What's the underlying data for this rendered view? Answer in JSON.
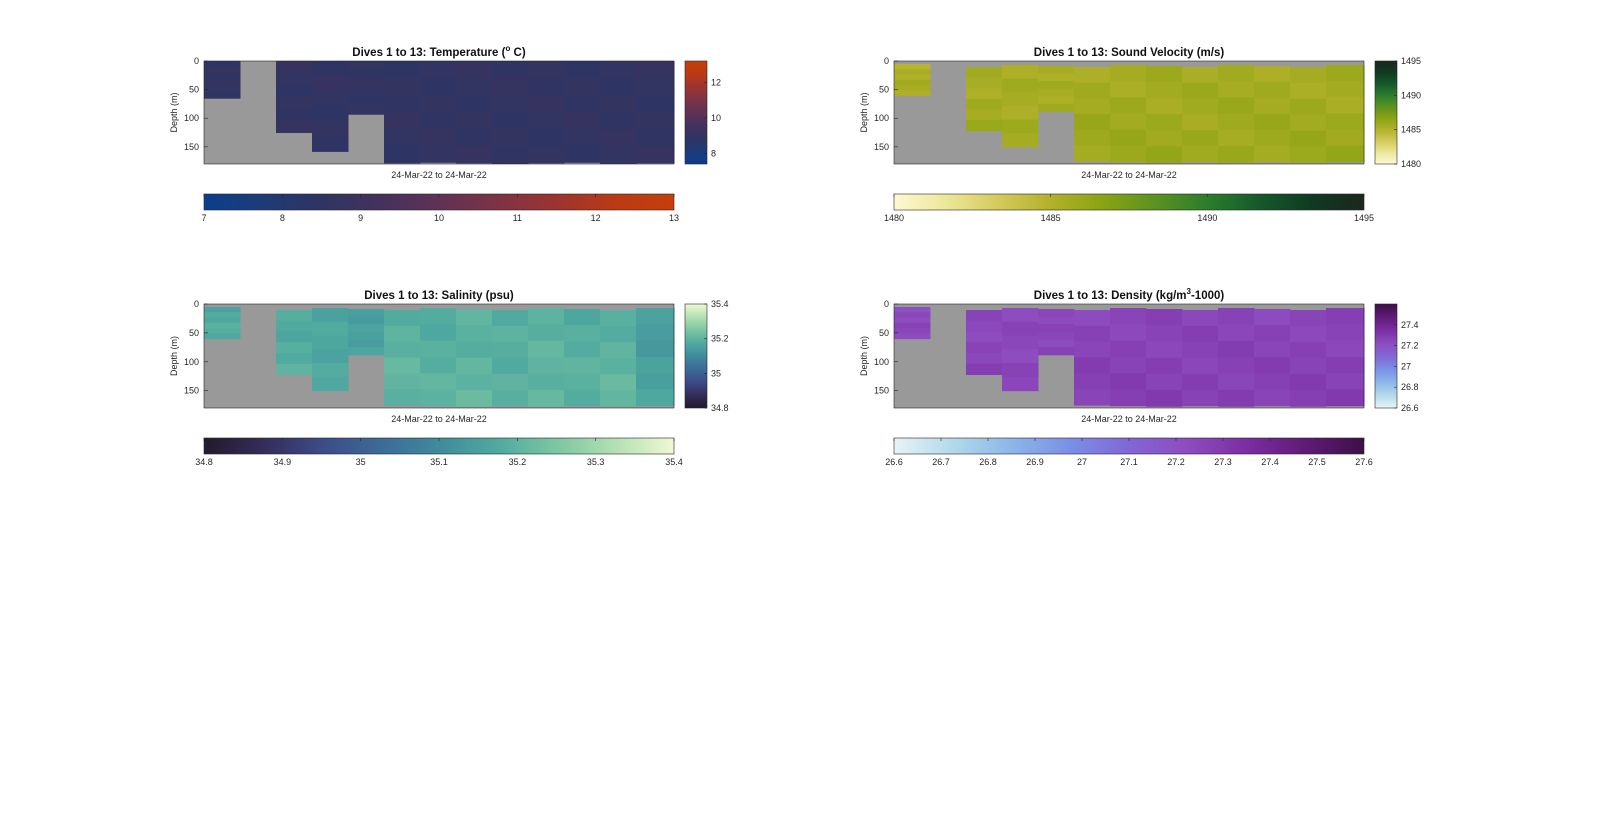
{
  "figure": {
    "background": "#ffffff",
    "no_data_color": "#999999"
  },
  "chart_data": [
    {
      "id": "temperature",
      "type": "heatmap",
      "title": "Dives 1 to 13: Temperature (",
      "title_sup": "o",
      "title_tail": " C)",
      "xlabel": "24-Mar-22 to 24-Mar-22",
      "ylabel": "Depth (m)",
      "y_ticks": [
        "0",
        "50",
        "100",
        "150"
      ],
      "ylim": [
        0,
        180
      ],
      "y_reversed": true,
      "side_colorbar": {
        "range": [
          7.4,
          13.2
        ],
        "ticks": [
          "8",
          "10",
          "12"
        ]
      },
      "bottom_colorbar": {
        "range": [
          7,
          13
        ],
        "ticks": [
          "7",
          "8",
          "9",
          "10",
          "11",
          "12",
          "13"
        ]
      },
      "colormap": [
        "#0a3f8c",
        "#1e3b78",
        "#2f3462",
        "#44325c",
        "#5f3254",
        "#7d3346",
        "#9c3430",
        "#bb3a14",
        "#c43f0a"
      ],
      "profiles": [
        {
          "bottom_depth": 65,
          "value": 8.6
        },
        {
          "bottom_depth": 0,
          "value": null
        },
        {
          "bottom_depth": 125,
          "value": 8.6
        },
        {
          "bottom_depth": 158,
          "value": 8.6
        },
        {
          "bottom_depth": 93,
          "value": 8.6
        },
        {
          "bottom_depth": 178,
          "value": 8.6
        },
        {
          "bottom_depth": 177,
          "value": 8.6
        },
        {
          "bottom_depth": 178,
          "value": 8.6
        },
        {
          "bottom_depth": 179,
          "value": 8.6
        },
        {
          "bottom_depth": 178,
          "value": 8.6
        },
        {
          "bottom_depth": 177,
          "value": 8.6
        },
        {
          "bottom_depth": 179,
          "value": 8.6
        },
        {
          "bottom_depth": 178,
          "value": 8.6
        }
      ]
    },
    {
      "id": "sound-velocity",
      "type": "heatmap",
      "title": "Dives 1 to 13: Sound Velocity (m/s)",
      "title_sup": "",
      "title_tail": "",
      "xlabel": "24-Mar-22 to 24-Mar-22",
      "ylabel": "Depth (m)",
      "y_ticks": [
        "0",
        "50",
        "100",
        "150"
      ],
      "ylim": [
        0,
        180
      ],
      "y_reversed": true,
      "side_colorbar": {
        "range": [
          1480,
          1495
        ],
        "ticks": [
          "1480",
          "1485",
          "1490",
          "1495"
        ]
      },
      "bottom_colorbar": {
        "range": [
          1480,
          1495
        ],
        "ticks": [
          "1480",
          "1485",
          "1490",
          "1495"
        ]
      },
      "colormap": [
        "#fdf9d3",
        "#ece79a",
        "#d4ca5c",
        "#b2b12a",
        "#8ba312",
        "#5c9220",
        "#2c7d2c",
        "#16592a",
        "#0f3a22",
        "#1b271d"
      ],
      "profiles": [
        {
          "bottom_depth": 60,
          "value": 1485.4
        },
        {
          "bottom_depth": 0,
          "value": null
        },
        {
          "bottom_depth": 122,
          "value": 1485.6
        },
        {
          "bottom_depth": 150,
          "value": 1485.6
        },
        {
          "bottom_depth": 88,
          "value": 1485.5
        },
        {
          "bottom_depth": 175,
          "value": 1485.8
        },
        {
          "bottom_depth": 176,
          "value": 1485.8
        },
        {
          "bottom_depth": 177,
          "value": 1485.8
        },
        {
          "bottom_depth": 176,
          "value": 1485.8
        },
        {
          "bottom_depth": 177,
          "value": 1485.8
        },
        {
          "bottom_depth": 176,
          "value": 1485.8
        },
        {
          "bottom_depth": 177,
          "value": 1485.8
        },
        {
          "bottom_depth": 176,
          "value": 1485.8
        }
      ]
    },
    {
      "id": "salinity",
      "type": "heatmap",
      "title": "Dives 1 to 13: Salinity (psu)",
      "title_sup": "",
      "title_tail": "",
      "xlabel": "24-Mar-22 to 24-Mar-22",
      "ylabel": "Depth (m)",
      "y_ticks": [
        "0",
        "50",
        "100",
        "150"
      ],
      "ylim": [
        0,
        180
      ],
      "y_reversed": true,
      "side_colorbar": {
        "range": [
          34.8,
          35.4
        ],
        "ticks": [
          "34.8",
          "35",
          "35.2",
          "35.4"
        ]
      },
      "bottom_colorbar": {
        "range": [
          34.8,
          35.4
        ],
        "ticks": [
          "34.8",
          "34.9",
          "35",
          "35.1",
          "35.2",
          "35.3",
          "35.4"
        ]
      },
      "colormap": [
        "#231a2d",
        "#352c5a",
        "#3c4b87",
        "#3d6a98",
        "#3f8b9c",
        "#50aa9f",
        "#7cc6a2",
        "#b3e0b2",
        "#f0f8d4"
      ],
      "profiles": [
        {
          "bottom_depth": 60,
          "value": 35.18
        },
        {
          "bottom_depth": 0,
          "value": null
        },
        {
          "bottom_depth": 122,
          "value": 35.18
        },
        {
          "bottom_depth": 150,
          "value": 35.17
        },
        {
          "bottom_depth": 88,
          "value": 35.15
        },
        {
          "bottom_depth": 175,
          "value": 35.2
        },
        {
          "bottom_depth": 176,
          "value": 35.19
        },
        {
          "bottom_depth": 177,
          "value": 35.2
        },
        {
          "bottom_depth": 176,
          "value": 35.19
        },
        {
          "bottom_depth": 177,
          "value": 35.2
        },
        {
          "bottom_depth": 176,
          "value": 35.19
        },
        {
          "bottom_depth": 177,
          "value": 35.2
        },
        {
          "bottom_depth": 176,
          "value": 35.15
        }
      ]
    },
    {
      "id": "density",
      "type": "heatmap",
      "title": "Dives 1 to 13: Density (kg/m",
      "title_sup": "3",
      "title_tail": "-1000)",
      "xlabel": "24-Mar-22 to 24-Mar-22",
      "ylabel": "",
      "y_ticks": [
        "0",
        "50",
        "100",
        "150"
      ],
      "ylim": [
        0,
        180
      ],
      "y_reversed": true,
      "side_colorbar": {
        "range": [
          26.6,
          27.6
        ],
        "ticks": [
          "26.6",
          "26.8",
          "27",
          "27.2",
          "27.4"
        ]
      },
      "bottom_colorbar": {
        "range": [
          26.6,
          27.6
        ],
        "ticks": [
          "26.6",
          "26.7",
          "26.8",
          "26.9",
          "27",
          "27.1",
          "27.2",
          "27.3",
          "27.4",
          "27.5",
          "27.6"
        ]
      },
      "colormap": [
        "#e7f3f6",
        "#b3d9ea",
        "#8cb6e8",
        "#7a8fe6",
        "#8366d6",
        "#8d4cbf",
        "#7b2ea2",
        "#5f1b78",
        "#3e0f47"
      ],
      "profiles": [
        {
          "bottom_depth": 60,
          "value": 27.24
        },
        {
          "bottom_depth": 0,
          "value": null
        },
        {
          "bottom_depth": 122,
          "value": 27.25
        },
        {
          "bottom_depth": 150,
          "value": 27.25
        },
        {
          "bottom_depth": 88,
          "value": 27.25
        },
        {
          "bottom_depth": 175,
          "value": 27.27
        },
        {
          "bottom_depth": 176,
          "value": 27.27
        },
        {
          "bottom_depth": 177,
          "value": 27.27
        },
        {
          "bottom_depth": 176,
          "value": 27.27
        },
        {
          "bottom_depth": 177,
          "value": 27.27
        },
        {
          "bottom_depth": 176,
          "value": 27.27
        },
        {
          "bottom_depth": 177,
          "value": 27.27
        },
        {
          "bottom_depth": 176,
          "value": 27.27
        }
      ]
    }
  ]
}
